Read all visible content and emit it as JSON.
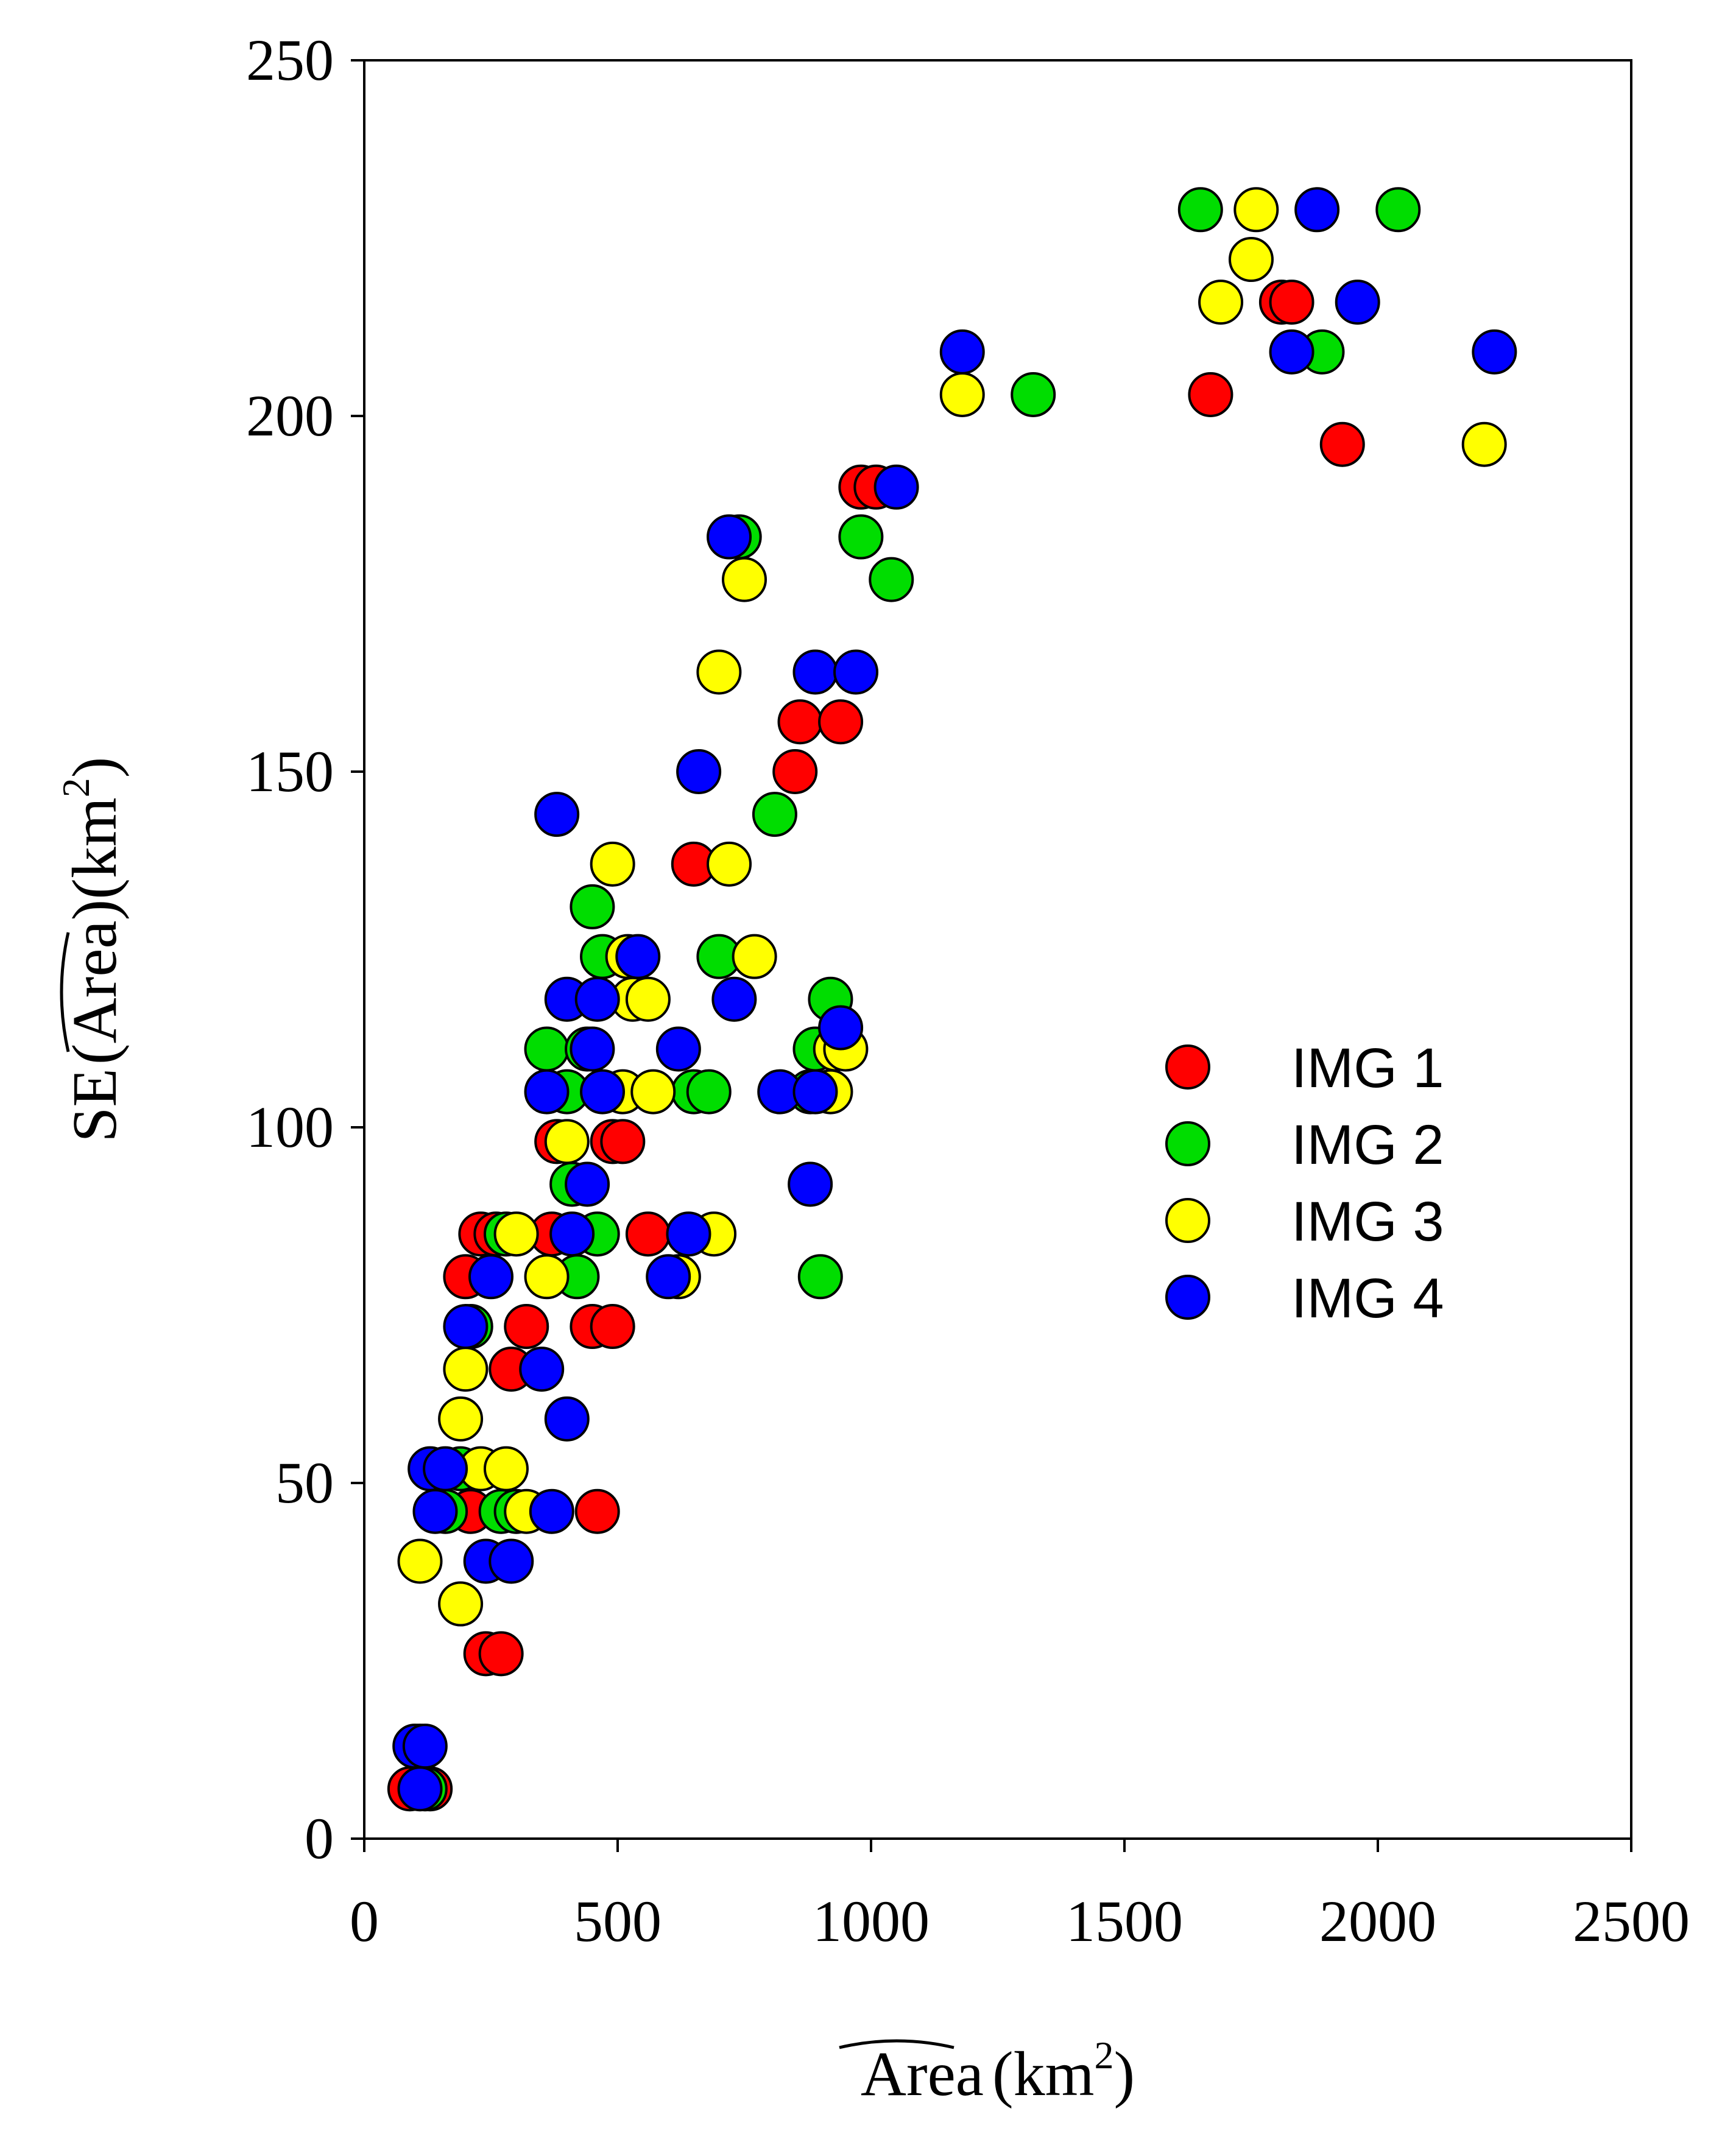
{
  "chart_data": {
    "type": "scatter",
    "title": "",
    "xlabel": {
      "hat": "Area",
      "unit_open": "(km",
      "sup": "2",
      "unit_close": ")"
    },
    "ylabel": {
      "prefix": "SE",
      "hat": "Area",
      "unit_open": "(km",
      "sup": "2",
      "unit_close": ")"
    },
    "xlim": [
      0,
      2500
    ],
    "ylim": [
      0,
      250
    ],
    "xticks": [
      0,
      500,
      1000,
      1500,
      2000,
      2500
    ],
    "yticks": [
      0,
      50,
      100,
      150,
      200,
      250
    ],
    "grid": false,
    "legend_position": "center-right",
    "series": [
      {
        "name": "IMG 1",
        "color": "#ff0000",
        "points": [
          [
            90,
            7
          ],
          [
            130,
            7
          ],
          [
            200,
            79
          ],
          [
            230,
            85
          ],
          [
            210,
            46
          ],
          [
            240,
            26
          ],
          [
            270,
            26
          ],
          [
            260,
            85
          ],
          [
            290,
            66
          ],
          [
            320,
            72
          ],
          [
            370,
            85
          ],
          [
            380,
            98
          ],
          [
            450,
            72
          ],
          [
            490,
            72
          ],
          [
            460,
            46
          ],
          [
            490,
            98
          ],
          [
            510,
            98
          ],
          [
            560,
            85
          ],
          [
            650,
            137
          ],
          [
            850,
            150
          ],
          [
            860,
            157
          ],
          [
            940,
            157
          ],
          [
            980,
            190
          ],
          [
            1010,
            190
          ],
          [
            1670,
            203
          ],
          [
            1810,
            216
          ],
          [
            1830,
            216
          ],
          [
            1930,
            196
          ]
        ]
      },
      {
        "name": "IMG 2",
        "color": "#00dd00",
        "points": [
          [
            110,
            13
          ],
          [
            120,
            7
          ],
          [
            160,
            46
          ],
          [
            190,
            52
          ],
          [
            210,
            72
          ],
          [
            270,
            46
          ],
          [
            280,
            85
          ],
          [
            300,
            46
          ],
          [
            360,
            111
          ],
          [
            400,
            105
          ],
          [
            410,
            92
          ],
          [
            420,
            79
          ],
          [
            440,
            111
          ],
          [
            450,
            131
          ],
          [
            460,
            85
          ],
          [
            470,
            124
          ],
          [
            650,
            105
          ],
          [
            680,
            105
          ],
          [
            700,
            124
          ],
          [
            740,
            183
          ],
          [
            810,
            144
          ],
          [
            880,
            105
          ],
          [
            890,
            111
          ],
          [
            900,
            79
          ],
          [
            920,
            118
          ],
          [
            980,
            183
          ],
          [
            1040,
            177
          ],
          [
            1320,
            203
          ],
          [
            1650,
            229
          ],
          [
            1890,
            209
          ],
          [
            2040,
            229
          ]
        ]
      },
      {
        "name": "IMG 3",
        "color": "#ffff00",
        "points": [
          [
            110,
            39
          ],
          [
            190,
            33
          ],
          [
            190,
            59
          ],
          [
            200,
            66
          ],
          [
            230,
            52
          ],
          [
            280,
            52
          ],
          [
            300,
            85
          ],
          [
            320,
            46
          ],
          [
            360,
            79
          ],
          [
            400,
            98
          ],
          [
            490,
            137
          ],
          [
            510,
            105
          ],
          [
            520,
            124
          ],
          [
            530,
            118
          ],
          [
            560,
            118
          ],
          [
            570,
            105
          ],
          [
            620,
            79
          ],
          [
            690,
            85
          ],
          [
            700,
            164
          ],
          [
            720,
            137
          ],
          [
            750,
            177
          ],
          [
            770,
            124
          ],
          [
            920,
            105
          ],
          [
            930,
            111
          ],
          [
            950,
            111
          ],
          [
            1180,
            203
          ],
          [
            1690,
            216
          ],
          [
            1750,
            222
          ],
          [
            1760,
            229
          ],
          [
            2210,
            196
          ]
        ]
      },
      {
        "name": "IMG 4",
        "color": "#0000ff",
        "points": [
          [
            100,
            13
          ],
          [
            110,
            7
          ],
          [
            120,
            13
          ],
          [
            130,
            52
          ],
          [
            140,
            46
          ],
          [
            160,
            52
          ],
          [
            200,
            72
          ],
          [
            240,
            39
          ],
          [
            250,
            79
          ],
          [
            290,
            39
          ],
          [
            350,
            66
          ],
          [
            360,
            105
          ],
          [
            370,
            46
          ],
          [
            380,
            144
          ],
          [
            400,
            59
          ],
          [
            400,
            118
          ],
          [
            410,
            85
          ],
          [
            440,
            92
          ],
          [
            450,
            111
          ],
          [
            460,
            118
          ],
          [
            470,
            105
          ],
          [
            540,
            124
          ],
          [
            600,
            79
          ],
          [
            620,
            111
          ],
          [
            640,
            85
          ],
          [
            660,
            150
          ],
          [
            720,
            183
          ],
          [
            730,
            118
          ],
          [
            820,
            105
          ],
          [
            880,
            92
          ],
          [
            890,
            105
          ],
          [
            890,
            164
          ],
          [
            940,
            114
          ],
          [
            970,
            164
          ],
          [
            1050,
            190
          ],
          [
            1180,
            209
          ],
          [
            1830,
            209
          ],
          [
            1880,
            229
          ],
          [
            1960,
            216
          ],
          [
            2230,
            209
          ]
        ]
      }
    ]
  }
}
